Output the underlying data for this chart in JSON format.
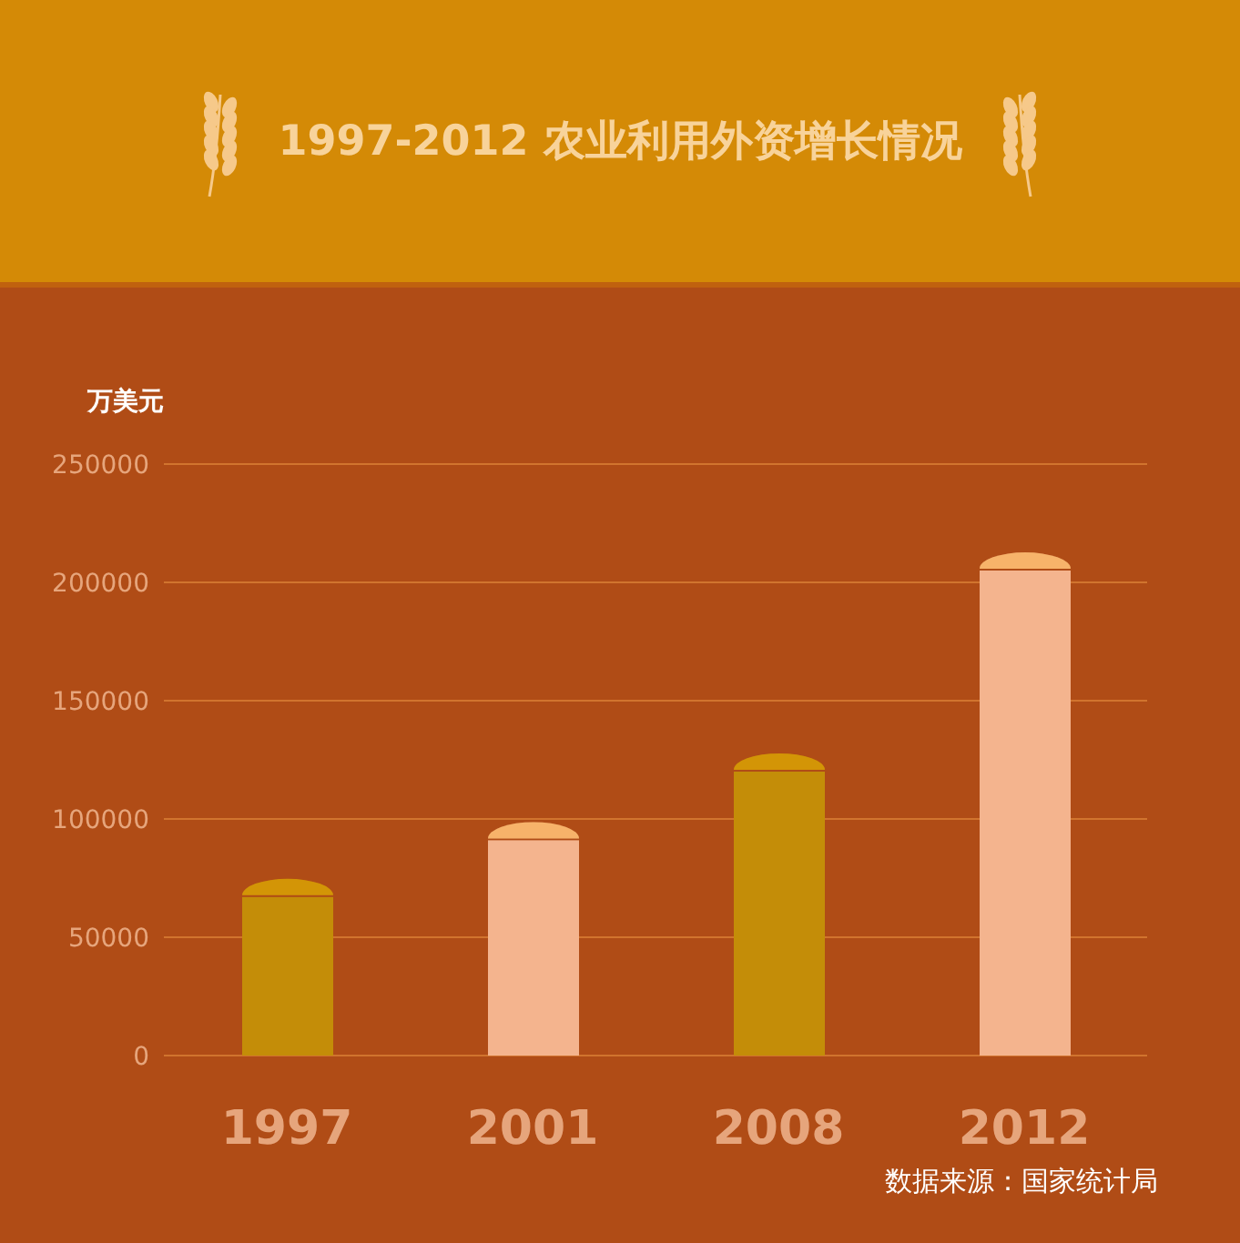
{
  "chart_data": {
    "type": "bar",
    "title": "1997-2012 农业利用外资增长情况",
    "ylabel": "万美元",
    "categories": [
      "1997",
      "2001",
      "2008",
      "2012"
    ],
    "values": [
      67000,
      91000,
      120000,
      205000
    ],
    "colors": [
      "#c48d08",
      "#f4b48e",
      "#c48d08",
      "#f4b48e"
    ],
    "ylim": [
      0,
      250000
    ],
    "yticks": [
      0,
      50000,
      100000,
      150000,
      200000,
      250000
    ],
    "grid": "y",
    "annotations": [
      "数据来源：国家统计局"
    ]
  }
}
